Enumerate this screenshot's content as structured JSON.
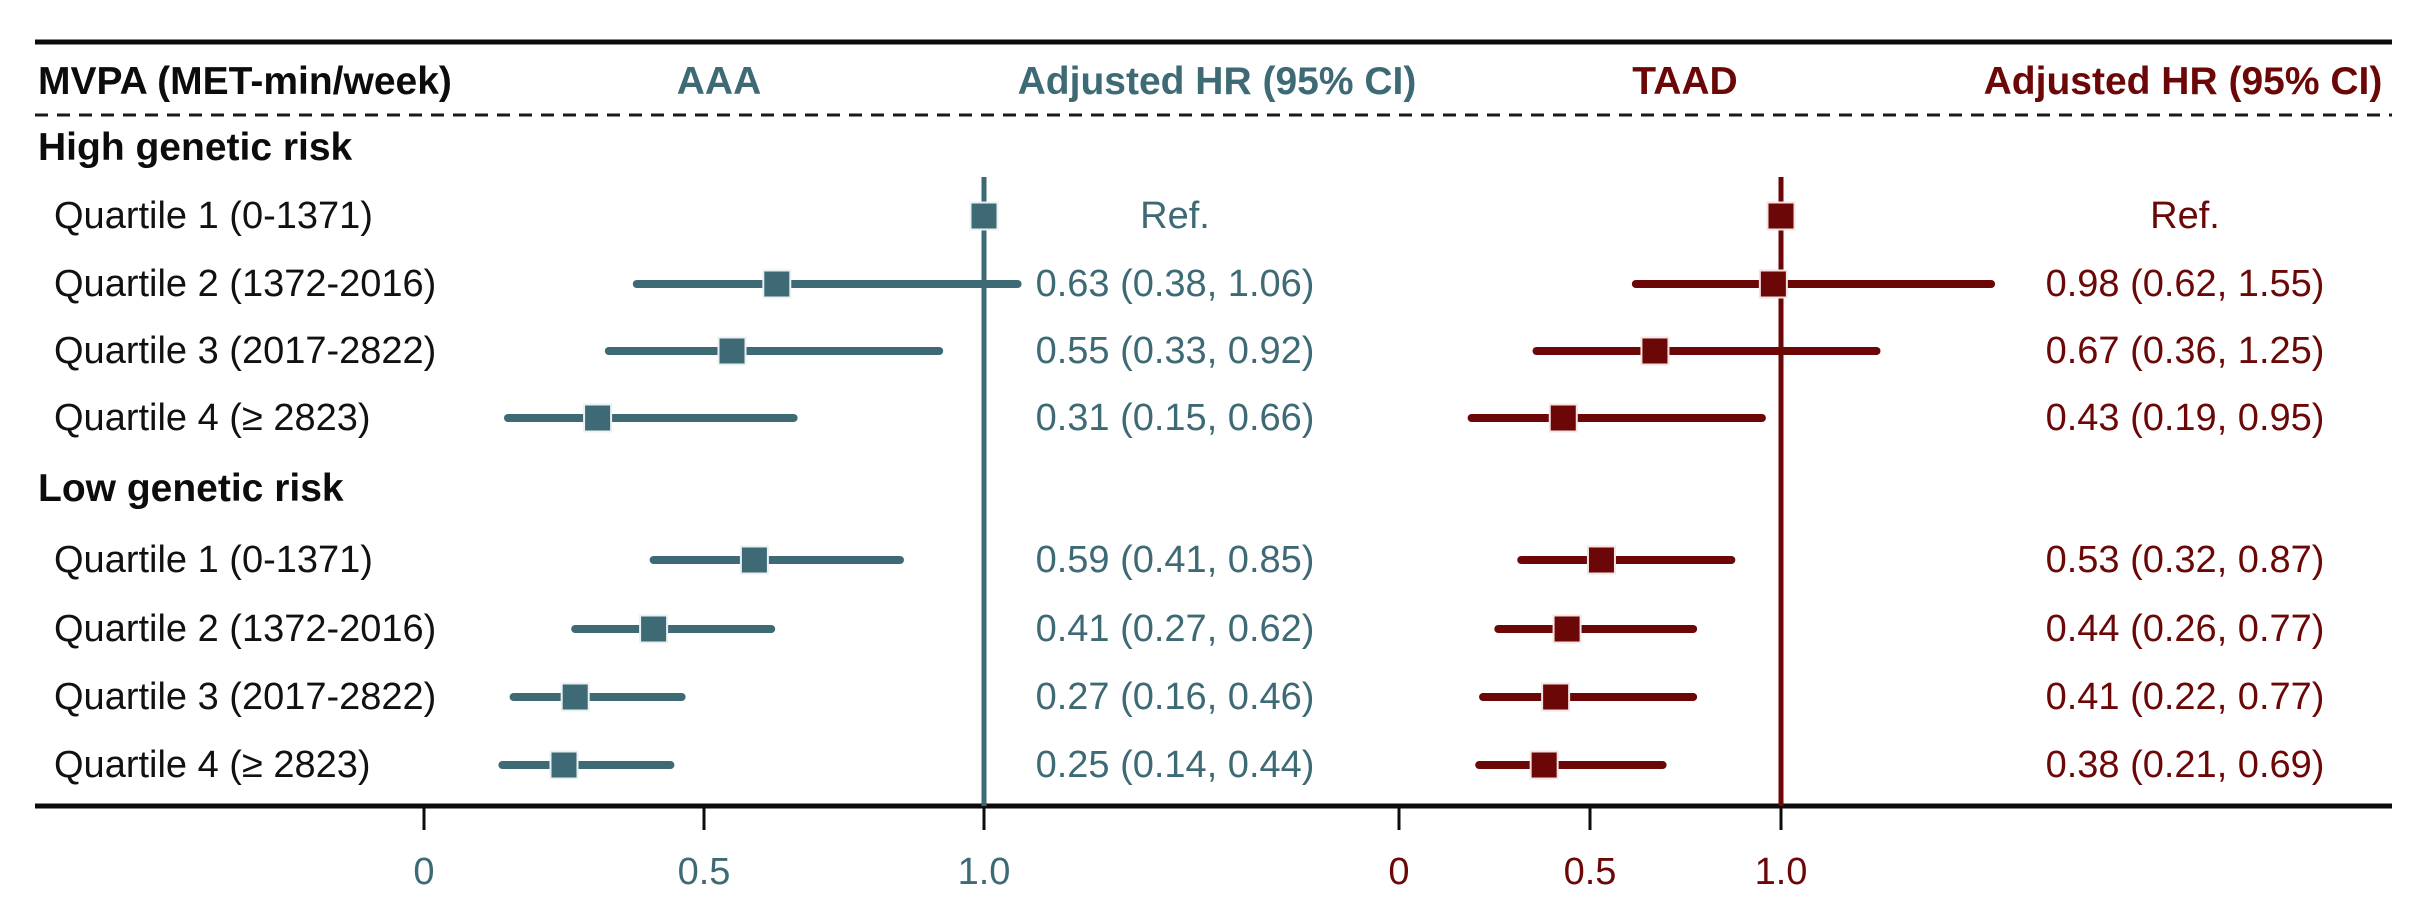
{
  "header": {
    "label_column": "MVPA (MET-min/week)",
    "aaa_column": "AAA",
    "aaa_hr_column": "Adjusted HR (95% CI)",
    "taad_column": "TAAD",
    "taad_hr_column": "Adjusted HR (95% CI)"
  },
  "colors": {
    "aaa": "#3E6A75",
    "aaa_square_edge": "#e9f1f3",
    "taad": "#6B0807",
    "taad_square_edge": "#f6e3e3",
    "axis": "#0c0c0c"
  },
  "chart_data": {
    "type": "forest",
    "grid": false,
    "x_ticks": [
      0,
      0.5,
      1.0
    ],
    "x_tick_labels": [
      "0",
      "0.5",
      "1.0"
    ],
    "reference_hr": 1.0,
    "panels": [
      {
        "key": "aaa",
        "name": "AAA",
        "color": "#3E6A75",
        "edge": "#e9f1f3"
      },
      {
        "key": "taad",
        "name": "TAAD",
        "color": "#6B0807",
        "edge": "#f6e3e3"
      }
    ],
    "rows": [
      {
        "kind": "group",
        "label": "High genetic risk"
      },
      {
        "kind": "item",
        "label": "Quartile 1 (0-1371)",
        "aaa": {
          "est": 1.0,
          "text": "Ref."
        },
        "taad": {
          "est": 1.0,
          "text": "Ref."
        }
      },
      {
        "kind": "item",
        "label": "Quartile 2 (1372-2016)",
        "aaa": {
          "est": 0.63,
          "lo": 0.38,
          "hi": 1.06,
          "text": "0.63 (0.38, 1.06)"
        },
        "taad": {
          "est": 0.98,
          "lo": 0.62,
          "hi": 1.55,
          "text": "0.98 (0.62, 1.55)"
        }
      },
      {
        "kind": "item",
        "label": "Quartile 3 (2017-2822)",
        "aaa": {
          "est": 0.55,
          "lo": 0.33,
          "hi": 0.92,
          "text": "0.55 (0.33, 0.92)"
        },
        "taad": {
          "est": 0.67,
          "lo": 0.36,
          "hi": 1.25,
          "text": "0.67 (0.36, 1.25)"
        }
      },
      {
        "kind": "item",
        "label": "Quartile 4 (≥ 2823)",
        "aaa": {
          "est": 0.31,
          "lo": 0.15,
          "hi": 0.66,
          "text": "0.31 (0.15, 0.66)"
        },
        "taad": {
          "est": 0.43,
          "lo": 0.19,
          "hi": 0.95,
          "text": "0.43 (0.19, 0.95)"
        }
      },
      {
        "kind": "group",
        "label": "Low genetic risk"
      },
      {
        "kind": "item",
        "label": "Quartile 1 (0-1371)",
        "aaa": {
          "est": 0.59,
          "lo": 0.41,
          "hi": 0.85,
          "text": "0.59 (0.41, 0.85)"
        },
        "taad": {
          "est": 0.53,
          "lo": 0.32,
          "hi": 0.87,
          "text": "0.53 (0.32, 0.87)"
        }
      },
      {
        "kind": "item",
        "label": "Quartile 2 (1372-2016)",
        "aaa": {
          "est": 0.41,
          "lo": 0.27,
          "hi": 0.62,
          "text": "0.41 (0.27, 0.62)"
        },
        "taad": {
          "est": 0.44,
          "lo": 0.26,
          "hi": 0.77,
          "text": "0.44 (0.26, 0.77)"
        }
      },
      {
        "kind": "item",
        "label": "Quartile 3 (2017-2822)",
        "aaa": {
          "est": 0.27,
          "lo": 0.16,
          "hi": 0.46,
          "text": "0.27 (0.16, 0.46)"
        },
        "taad": {
          "est": 0.41,
          "lo": 0.22,
          "hi": 0.77,
          "text": "0.41 (0.22, 0.77)"
        }
      },
      {
        "kind": "item",
        "label": "Quartile 4 (≥ 2823)",
        "aaa": {
          "est": 0.25,
          "lo": 0.14,
          "hi": 0.44,
          "text": "0.25 (0.14, 0.44)"
        },
        "taad": {
          "est": 0.38,
          "lo": 0.21,
          "hi": 0.69,
          "text": "0.38 (0.21, 0.69)"
        }
      }
    ]
  }
}
